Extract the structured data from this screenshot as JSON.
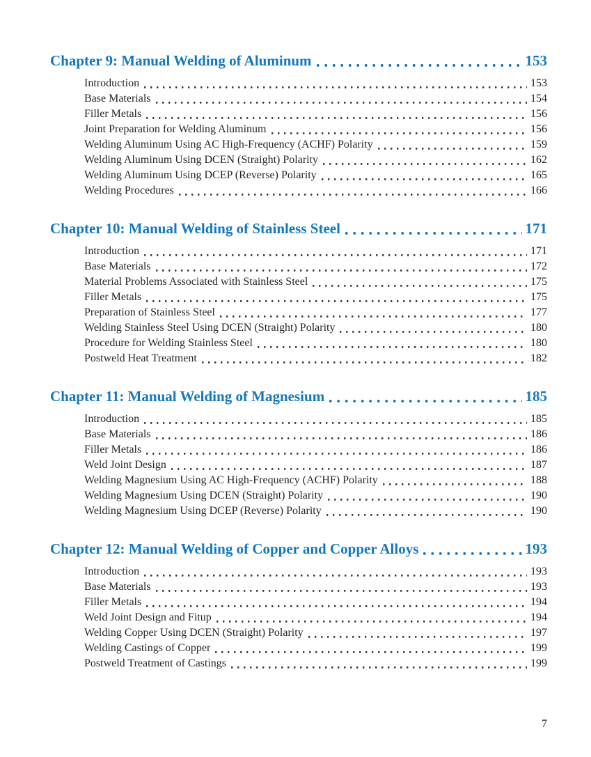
{
  "colors": {
    "heading-blue": "#1478BE",
    "body-text": "#262626",
    "page-bg": "#ffffff"
  },
  "page": {
    "folio": "7"
  },
  "toc": {
    "chapters": [
      {
        "title": "Chapter 9: Manual Welding of Aluminum",
        "page": "153",
        "entries": [
          {
            "label": "Introduction",
            "page": "153"
          },
          {
            "label": "Base Materials",
            "page": "154"
          },
          {
            "label": "Filler Metals",
            "page": "156"
          },
          {
            "label": "Joint Preparation for Welding Aluminum",
            "page": "156"
          },
          {
            "label": "Welding Aluminum Using AC High-Frequency (ACHF) Polarity",
            "page": "159"
          },
          {
            "label": "Welding Aluminum Using DCEN (Straight) Polarity",
            "page": "162"
          },
          {
            "label": "Welding Aluminum Using DCEP (Reverse) Polarity",
            "page": "165"
          },
          {
            "label": "Welding Procedures",
            "page": "166"
          }
        ]
      },
      {
        "title": "Chapter 10: Manual Welding of Stainless Steel",
        "page": "171",
        "entries": [
          {
            "label": "Introduction",
            "page": "171"
          },
          {
            "label": "Base Materials",
            "page": "172"
          },
          {
            "label": "Material Problems Associated with Stainless Steel",
            "page": "175"
          },
          {
            "label": "Filler Metals",
            "page": "175"
          },
          {
            "label": "Preparation of Stainless Steel",
            "page": "177"
          },
          {
            "label": "Welding Stainless Steel Using DCEN (Straight) Polarity",
            "page": "180"
          },
          {
            "label": "Procedure for Welding Stainless Steel",
            "page": "180"
          },
          {
            "label": "Postweld Heat Treatment",
            "page": "182"
          }
        ]
      },
      {
        "title": "Chapter 11: Manual Welding of Magnesium",
        "page": "185",
        "entries": [
          {
            "label": "Introduction",
            "page": "185"
          },
          {
            "label": "Base Materials",
            "page": "186"
          },
          {
            "label": "Filler Metals",
            "page": "186"
          },
          {
            "label": "Weld Joint Design",
            "page": "187"
          },
          {
            "label": "Welding Magnesium Using AC High-Frequency (ACHF) Polarity",
            "page": "188"
          },
          {
            "label": "Welding Magnesium Using DCEN (Straight) Polarity",
            "page": "190"
          },
          {
            "label": "Welding Magnesium Using DCEP (Reverse) Polarity",
            "page": "190"
          }
        ]
      },
      {
        "title": "Chapter 12: Manual Welding of Copper and Copper Alloys",
        "page": "193",
        "entries": [
          {
            "label": "Introduction",
            "page": "193"
          },
          {
            "label": "Base Materials",
            "page": "193"
          },
          {
            "label": "Filler Metals",
            "page": "194"
          },
          {
            "label": "Weld Joint Design and Fitup",
            "page": "194"
          },
          {
            "label": "Welding Copper Using DCEN (Straight) Polarity",
            "page": "197"
          },
          {
            "label": "Welding Castings of Copper",
            "page": "199"
          },
          {
            "label": "Postweld Treatment of Castings",
            "page": "199"
          }
        ]
      }
    ]
  }
}
